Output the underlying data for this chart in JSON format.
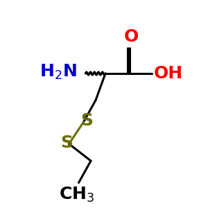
{
  "background_color": "#ffffff",
  "bond_color": "#000000",
  "S_color": "#6b6b00",
  "N_color": "#0000cc",
  "O_color": "#ff0000",
  "wavy_color": "#000000",
  "figsize": [
    3.0,
    3.0
  ],
  "dpi": 100,
  "xlim": [
    -0.5,
    4.2
  ],
  "ylim": [
    -2.8,
    3.8
  ],
  "C": [
    1.8,
    1.8
  ],
  "CO": [
    2.8,
    1.8
  ],
  "Od": [
    2.8,
    2.9
  ],
  "Oh": [
    3.7,
    1.8
  ],
  "N": [
    0.7,
    1.8
  ],
  "Cb": [
    1.4,
    0.7
  ],
  "S1": [
    0.9,
    -0.2
  ],
  "S2": [
    0.3,
    -1.1
  ],
  "Ce": [
    1.2,
    -1.8
  ],
  "Cm": [
    0.7,
    -2.7
  ],
  "lw": 2.2,
  "fs_main": 18,
  "fs_sub": 14,
  "wavy_n": 5,
  "wavy_amp": 0.06
}
